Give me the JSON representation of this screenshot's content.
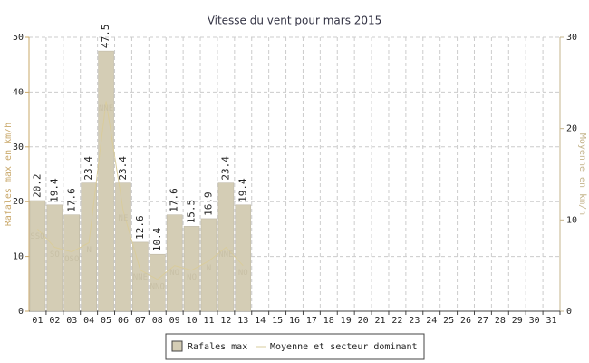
{
  "chart_data": {
    "type": "bar_line",
    "title": "Vitesse du vent pour mars 2015",
    "ylabel": "Rafales max en km/h",
    "y2label": "Moyenne en km/h",
    "categories": [
      "01",
      "02",
      "03",
      "04",
      "05",
      "06",
      "07",
      "08",
      "09",
      "10",
      "11",
      "12",
      "13",
      "14",
      "15",
      "16",
      "17",
      "18",
      "19",
      "20",
      "21",
      "22",
      "23",
      "24",
      "25",
      "26",
      "27",
      "28",
      "29",
      "30",
      "31"
    ],
    "series": [
      {
        "name": "Rafales max",
        "color": "#d4cdb5",
        "axis": "y",
        "values": [
          20.2,
          19.4,
          17.6,
          23.4,
          47.5,
          23.4,
          12.6,
          10.4,
          17.6,
          15.5,
          16.9,
          23.4,
          19.4,
          null,
          null,
          null,
          null,
          null,
          null,
          null,
          null,
          null,
          null,
          null,
          null,
          null,
          null,
          null,
          null,
          null,
          null
        ]
      },
      {
        "name": "Moyenne et secteur dominant",
        "color": "#d9cc9c",
        "axis": "y2",
        "values": [
          9,
          7,
          6.5,
          7.5,
          23,
          11,
          4.5,
          3.5,
          5,
          4.5,
          5.5,
          7,
          5,
          null,
          null,
          null,
          null,
          null,
          null,
          null,
          null,
          null,
          null,
          null,
          null,
          null,
          null,
          null,
          null,
          null,
          null
        ],
        "labels": [
          "SSO",
          "SO",
          "OSO",
          "N",
          "NNE",
          "NE",
          "NNE",
          "NNO",
          "NO",
          "NO",
          "N",
          "NNE",
          "NO",
          null,
          null,
          null,
          null,
          null,
          null,
          null,
          null,
          null,
          null,
          null,
          null,
          null,
          null,
          null,
          null,
          null,
          null
        ]
      }
    ],
    "ylim": [
      0,
      50
    ],
    "yticks": [
      0,
      10,
      20,
      30,
      40,
      50
    ],
    "y2lim": [
      0,
      30
    ],
    "y2ticks": [
      0,
      10,
      20,
      30
    ],
    "grid": true,
    "legend": "bottom"
  }
}
